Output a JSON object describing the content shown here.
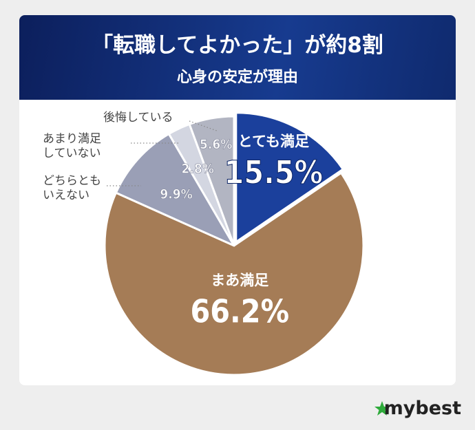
{
  "chart_data": {
    "type": "pie",
    "title": "「転職してよかった」が約8割",
    "subtitle": "心身の安定が理由",
    "categories": [
      "とても満足",
      "まあ満足",
      "どちらとも\nいえない",
      "あまり満足\nしていない",
      "後悔している"
    ],
    "values": [
      15.5,
      66.2,
      9.9,
      2.8,
      5.6
    ],
    "value_labels": [
      "15.5%",
      "66.2%",
      "9.9%",
      "2.8%",
      "5.6%"
    ],
    "colors": [
      "#1b409c",
      "#a57c56",
      "#9a9fb6",
      "#d3d6e1",
      "#b2b5c2"
    ]
  },
  "brand": "mybest"
}
